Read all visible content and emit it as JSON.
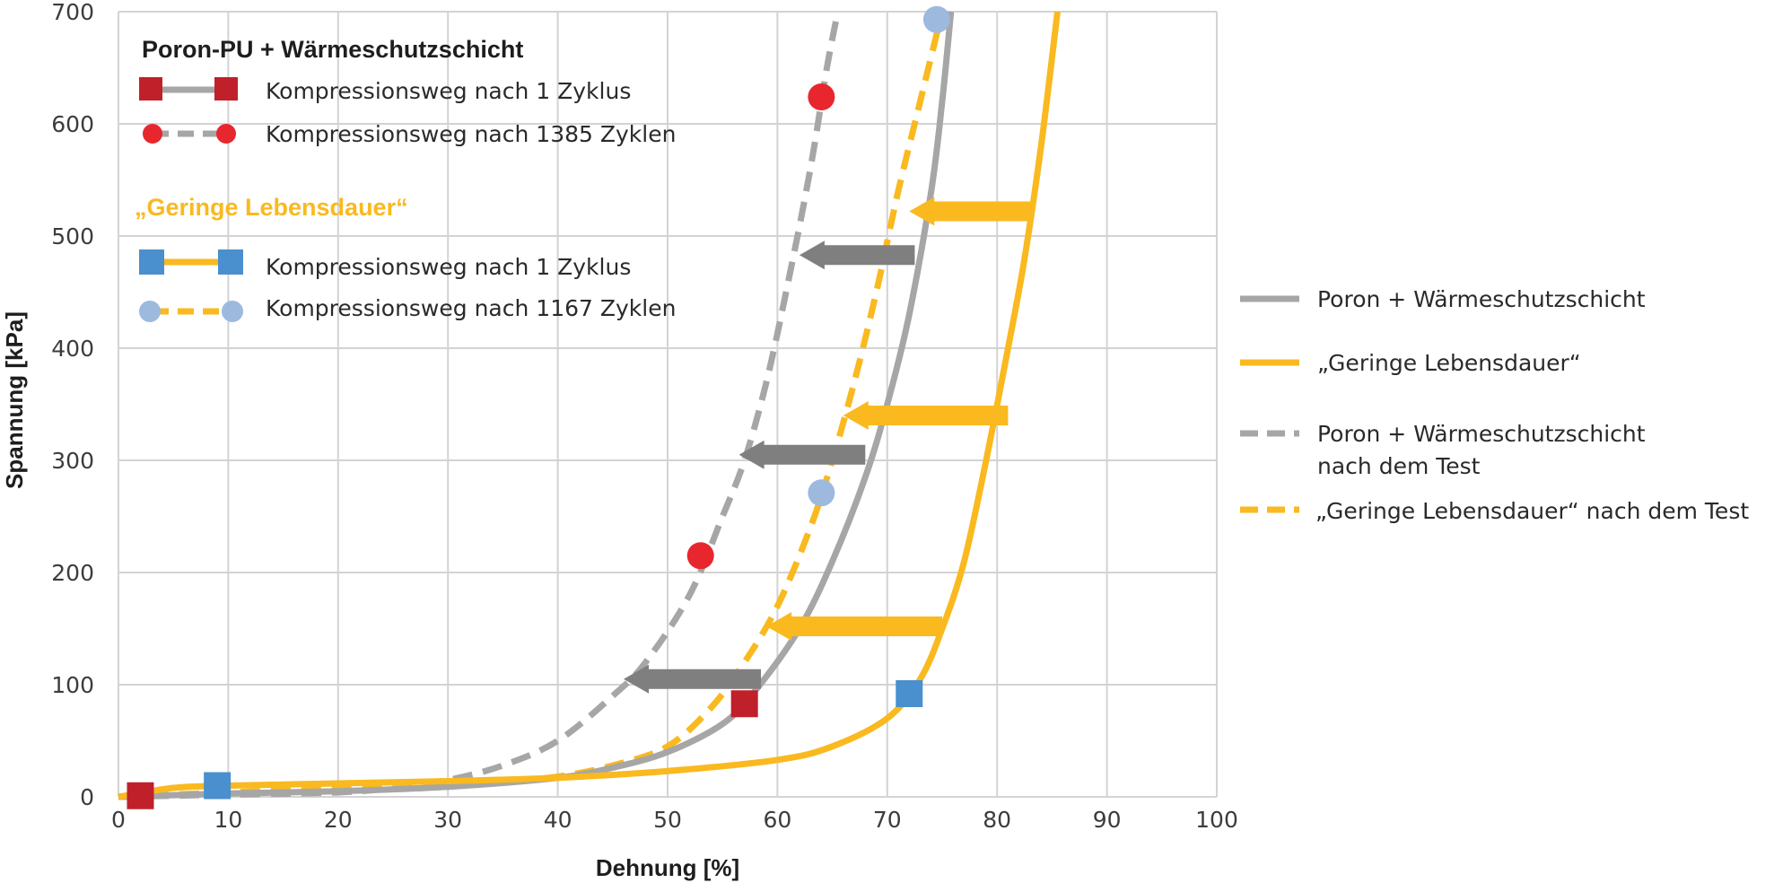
{
  "chart_data": {
    "type": "line",
    "title": "",
    "xlabel": "Dehnung [%]",
    "ylabel": "Spannung [kPa]",
    "xlim": [
      0,
      100
    ],
    "ylim": [
      0,
      700
    ],
    "xticks": [
      "0",
      "10",
      "20",
      "30",
      "40",
      "50",
      "60",
      "70",
      "80",
      "90",
      "100"
    ],
    "yticks": [
      "0",
      "100",
      "200",
      "300",
      "400",
      "500",
      "600",
      "700"
    ],
    "grid": true,
    "legend_position": "right",
    "colors": {
      "gray": "#a6a6a6",
      "yellow": "#f9b91f",
      "red": "#d8262e",
      "blue": "#4a8fce",
      "lightblue": "#9db9de",
      "arrow_gray": "#7f7f7f"
    },
    "series": [
      {
        "name": "Poron + Wärmeschutzschicht",
        "style": "solid",
        "color": "#a6a6a6",
        "points": [
          [
            0,
            0
          ],
          [
            10,
            3
          ],
          [
            20,
            5
          ],
          [
            30,
            9
          ],
          [
            40,
            17
          ],
          [
            45,
            26
          ],
          [
            50,
            40
          ],
          [
            55,
            65
          ],
          [
            58,
            95
          ],
          [
            62,
            150
          ],
          [
            65,
            210
          ],
          [
            68,
            285
          ],
          [
            70,
            350
          ],
          [
            72,
            430
          ],
          [
            74,
            540
          ],
          [
            75,
            620
          ],
          [
            75.8,
            700
          ]
        ]
      },
      {
        "name": "„Geringe Lebensdauer“",
        "style": "solid",
        "color": "#f9b91f",
        "points": [
          [
            0,
            0
          ],
          [
            5,
            8
          ],
          [
            10,
            10
          ],
          [
            20,
            12
          ],
          [
            30,
            14
          ],
          [
            40,
            17
          ],
          [
            50,
            23
          ],
          [
            60,
            33
          ],
          [
            65,
            45
          ],
          [
            70,
            70
          ],
          [
            73,
            105
          ],
          [
            75,
            150
          ],
          [
            77,
            210
          ],
          [
            79,
            300
          ],
          [
            81,
            400
          ],
          [
            82.5,
            480
          ],
          [
            84,
            580
          ],
          [
            85.5,
            700
          ]
        ]
      },
      {
        "name": "Poron + Wärmeschutzschicht nach dem Test",
        "style": "dashed",
        "color": "#a6a6a6",
        "points": [
          [
            0,
            0
          ],
          [
            10,
            2
          ],
          [
            20,
            4
          ],
          [
            25,
            8
          ],
          [
            30,
            15
          ],
          [
            35,
            28
          ],
          [
            40,
            50
          ],
          [
            45,
            90
          ],
          [
            48,
            120
          ],
          [
            52,
            180
          ],
          [
            55,
            250
          ],
          [
            57,
            300
          ],
          [
            59,
            370
          ],
          [
            61,
            460
          ],
          [
            63,
            560
          ],
          [
            64.5,
            650
          ],
          [
            65.5,
            700
          ]
        ]
      },
      {
        "name": "„Geringe Lebensdauer“ nach dem Test",
        "style": "dashed",
        "color": "#f9b91f",
        "points": [
          [
            0,
            0
          ],
          [
            10,
            4
          ],
          [
            20,
            7
          ],
          [
            30,
            10
          ],
          [
            35,
            14
          ],
          [
            40,
            18
          ],
          [
            45,
            28
          ],
          [
            50,
            45
          ],
          [
            54,
            80
          ],
          [
            57,
            120
          ],
          [
            60,
            170
          ],
          [
            63,
            240
          ],
          [
            65,
            300
          ],
          [
            67,
            370
          ],
          [
            69,
            450
          ],
          [
            71,
            540
          ],
          [
            73,
            620
          ],
          [
            75,
            700
          ]
        ]
      }
    ],
    "markers": {
      "Poron-PU + Wärmeschutzschicht, Kompressionsweg nach 1 Zyklus": [
        [
          2,
          1
        ],
        [
          57,
          83
        ]
      ],
      "Poron-PU + Wärmeschutzschicht, Kompressionsweg nach 1385 Zyklen": [
        [
          53,
          215
        ],
        [
          64,
          624
        ]
      ],
      "„Geringe Lebensdauer“, Kompressionsweg nach 1 Zyklus": [
        [
          9,
          10
        ],
        [
          72,
          92
        ]
      ],
      "„Geringe Lebensdauer“, Kompressionsweg nach 1167 Zyklen": [
        [
          64,
          271
        ],
        [
          74.5,
          693
        ]
      ]
    },
    "arrows": [
      {
        "color": "gray",
        "y": 105,
        "from_x": 58.5,
        "to_x": 46
      },
      {
        "color": "gray",
        "y": 305,
        "from_x": 68,
        "to_x": 56.5
      },
      {
        "color": "gray",
        "y": 483,
        "from_x": 72.5,
        "to_x": 62
      },
      {
        "color": "yellow",
        "y": 152,
        "from_x": 75,
        "to_x": 59
      },
      {
        "color": "yellow",
        "y": 340,
        "from_x": 81,
        "to_x": 66
      },
      {
        "color": "yellow",
        "y": 522,
        "from_x": 83,
        "to_x": 72
      }
    ],
    "legend_inner": {
      "group1_title": "Poron-PU + Wärmeschutzschicht",
      "group1_item1": "Kompressionsweg nach 1 Zyklus",
      "group1_item2": "Kompressionsweg nach 1385 Zyklen",
      "group2_title": "„Geringe Lebensdauer“",
      "group2_item1": "Kompressionsweg nach 1 Zyklus",
      "group2_item2": "Kompressionsweg nach 1167 Zyklen"
    },
    "legend_right": {
      "item1": "Poron + Wärmeschutzschicht",
      "item2": "„Geringe Lebensdauer“",
      "item3_line1": "Poron + Wärmeschutzschicht",
      "item3_line2": "nach dem Test",
      "item4": "„Geringe Lebensdauer“ nach dem Test"
    }
  }
}
